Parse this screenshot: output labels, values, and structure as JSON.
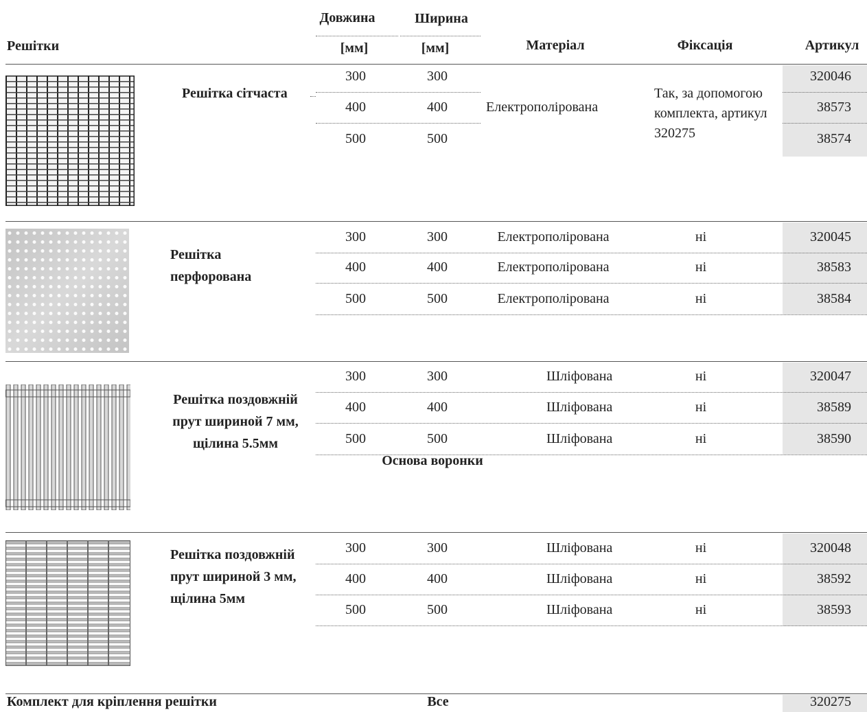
{
  "header": {
    "product": "Решітки",
    "length": "Довжина",
    "length_unit": "[мм]",
    "width": "Ширина",
    "width_unit": "[мм]",
    "material": "Матеріал",
    "fixation": "Фіксація",
    "article": "Артикул"
  },
  "groups": [
    {
      "name": "Решітка сітчаста",
      "material": "Електрополірована",
      "fixation": "Так, за допомогою комплекта, артикул 320275",
      "rows": [
        {
          "length": 300,
          "width": 300,
          "article": "320046"
        },
        {
          "length": 400,
          "width": 400,
          "article": "38573"
        },
        {
          "length": 500,
          "width": 500,
          "article": "38574"
        }
      ]
    },
    {
      "name": "Решітка перфорована",
      "rows": [
        {
          "length": 300,
          "width": 300,
          "material": "Електрополірована",
          "fixation": "ні",
          "article": "320045"
        },
        {
          "length": 400,
          "width": 400,
          "material": "Електрополірована",
          "fixation": "ні",
          "article": "38583"
        },
        {
          "length": 500,
          "width": 500,
          "material": "Електрополірована",
          "fixation": "ні",
          "article": "38584"
        }
      ]
    },
    {
      "name": "Решітка поздовжній прут шириной 7 мм, щілина 5.5мм",
      "note": "Основа воронки",
      "rows": [
        {
          "length": 300,
          "width": 300,
          "material": "Шліфована",
          "fixation": "ні",
          "article": "320047"
        },
        {
          "length": 400,
          "width": 400,
          "material": "Шліфована",
          "fixation": "ні",
          "article": "38589"
        },
        {
          "length": 500,
          "width": 500,
          "material": "Шліфована",
          "fixation": "ні",
          "article": "38590"
        }
      ]
    },
    {
      "name": "Решітка поздовжній прут шириной 3 мм, щілина 5мм",
      "rows": [
        {
          "length": 300,
          "width": 300,
          "material": "Шліфована",
          "fixation": "ні",
          "article": "320048"
        },
        {
          "length": 400,
          "width": 400,
          "material": "Шліфована",
          "fixation": "ні",
          "article": "38592"
        },
        {
          "length": 500,
          "width": 500,
          "material": "Шліфована",
          "fixation": "ні",
          "article": "38593"
        }
      ]
    }
  ],
  "footer": {
    "name": "Комплект для кріплення решітки",
    "size": "Все",
    "article": "320275"
  }
}
